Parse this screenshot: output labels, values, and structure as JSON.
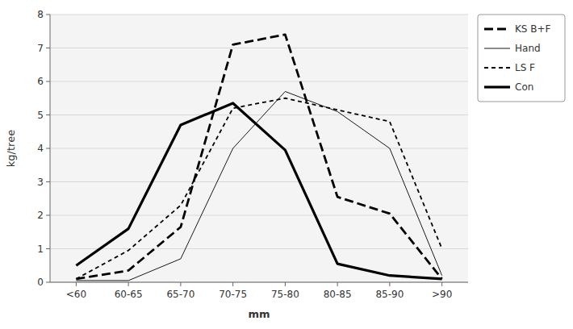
{
  "chart_data": {
    "type": "line",
    "categories": [
      "<60",
      "60-65",
      "65-70",
      "70-75",
      "75-80",
      "80-85",
      "85-90",
      ">90"
    ],
    "series": [
      {
        "name": "KS B+F",
        "color": "#000000",
        "line_style": "long-dashed",
        "values": [
          0.1,
          0.35,
          1.65,
          7.1,
          7.4,
          2.55,
          2.05,
          0.1
        ]
      },
      {
        "name": "Hand",
        "color": "#000000",
        "line_style": "solid",
        "values": [
          0.05,
          0.05,
          0.7,
          4.0,
          5.7,
          5.1,
          4.0,
          0.2
        ]
      },
      {
        "name": "LS F",
        "color": "#000000",
        "line_style": "dashed",
        "values": [
          0.1,
          0.95,
          2.3,
          5.2,
          5.5,
          5.15,
          4.8,
          1.0
        ]
      },
      {
        "name": "Con",
        "color": "#000000",
        "line_style": "solid",
        "values": [
          0.5,
          1.6,
          4.7,
          5.35,
          3.95,
          0.55,
          0.2,
          0.1
        ]
      }
    ],
    "x_label": "mm",
    "y_label": "kg/tree",
    "ylim": [
      0,
      8
    ],
    "yticks": [
      0,
      1,
      2,
      3,
      4,
      5,
      6,
      7,
      8
    ],
    "grid": true,
    "legend": "right"
  }
}
